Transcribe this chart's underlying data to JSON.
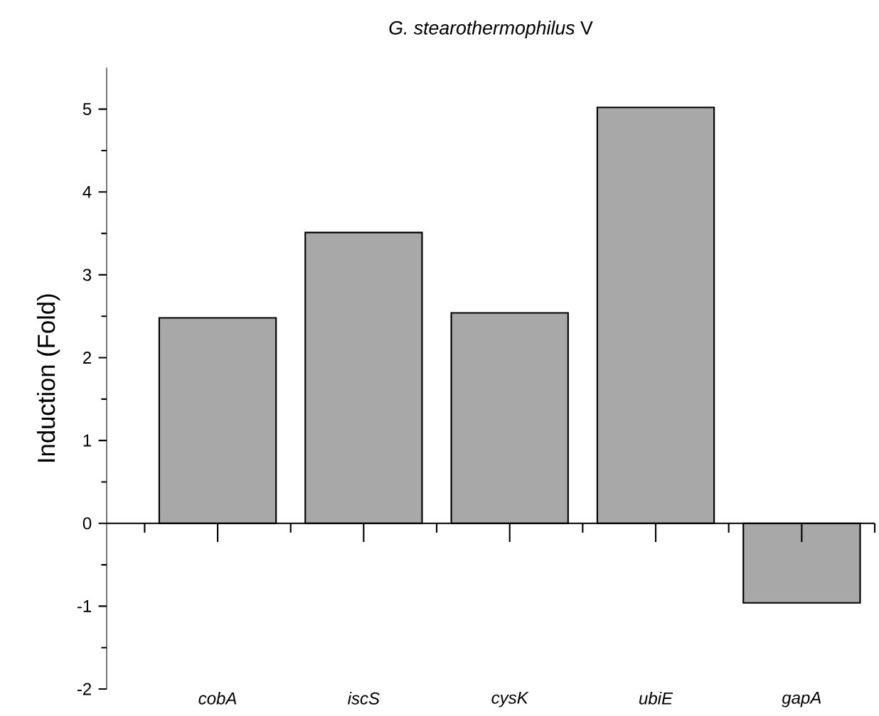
{
  "chart_data": {
    "type": "bar",
    "title": "*G. stearothermophilus* V",
    "ylabel": "Induction (Fold)",
    "categories": [
      "cobA",
      "iscS",
      "cysK",
      "ubiE",
      "gapA"
    ],
    "values": [
      2.48,
      3.51,
      2.54,
      5.02,
      -0.96
    ],
    "color": "#a8a8a8",
    "ylim": [
      -2,
      5.5
    ],
    "yticks": [
      -2,
      -1,
      0,
      1,
      2,
      3,
      4,
      5
    ]
  }
}
